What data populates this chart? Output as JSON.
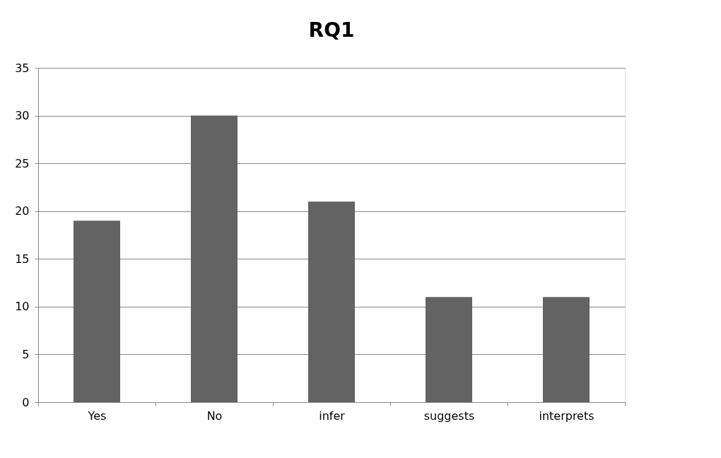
{
  "chart_data": {
    "type": "bar",
    "title": "RQ1",
    "categories": [
      "Yes",
      "No",
      "infer",
      "suggests",
      "interprets"
    ],
    "values": [
      19,
      30,
      21,
      11,
      11
    ],
    "color": "#636363",
    "ylim": [
      0,
      35
    ],
    "yticks": [
      0,
      5,
      10,
      15,
      20,
      25,
      30,
      35
    ],
    "grid": "y"
  }
}
